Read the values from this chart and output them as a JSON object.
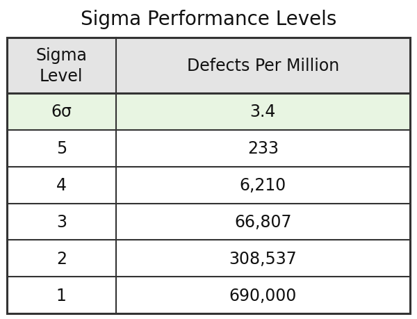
{
  "title": "Sigma Performance Levels",
  "col_headers": [
    "Sigma\nLevel",
    "Defects Per Million"
  ],
  "rows": [
    [
      "6σ",
      "3.4"
    ],
    [
      "5",
      "233"
    ],
    [
      "4",
      "6,210"
    ],
    [
      "3",
      "66,807"
    ],
    [
      "2",
      "308,537"
    ],
    [
      "1",
      "690,000"
    ]
  ],
  "highlight_row": 0,
  "highlight_color": "#e8f5e2",
  "header_bg": "#e4e4e4",
  "row_bg": "#ffffff",
  "title_fontsize": 20,
  "header_fontsize": 17,
  "cell_fontsize": 17,
  "line_color": "#333333",
  "text_color": "#111111",
  "col_split": 0.27
}
